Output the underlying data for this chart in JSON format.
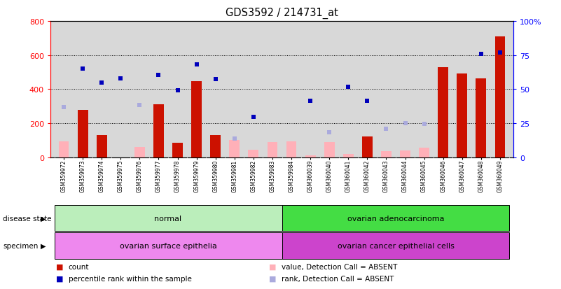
{
  "title": "GDS3592 / 214731_at",
  "samples": [
    "GSM359972",
    "GSM359973",
    "GSM359974",
    "GSM359975",
    "GSM359976",
    "GSM359977",
    "GSM359978",
    "GSM359979",
    "GSM359980",
    "GSM359981",
    "GSM359982",
    "GSM359983",
    "GSM359984",
    "GSM360039",
    "GSM360040",
    "GSM360041",
    "GSM360042",
    "GSM360043",
    "GSM360044",
    "GSM360045",
    "GSM360046",
    "GSM360047",
    "GSM360048",
    "GSM360049"
  ],
  "count_present": [
    0,
    280,
    130,
    0,
    0,
    310,
    85,
    445,
    130,
    0,
    0,
    0,
    0,
    0,
    0,
    0,
    120,
    0,
    0,
    0,
    530,
    490,
    465,
    710
  ],
  "count_absent": [
    95,
    0,
    0,
    0,
    60,
    0,
    0,
    0,
    0,
    100,
    45,
    90,
    95,
    10,
    90,
    20,
    0,
    35,
    40,
    55,
    0,
    0,
    0,
    0
  ],
  "rank_present": [
    0,
    520,
    440,
    465,
    0,
    485,
    395,
    545,
    460,
    0,
    235,
    0,
    0,
    330,
    0,
    415,
    330,
    0,
    0,
    0,
    0,
    0,
    605,
    615
  ],
  "rank_absent": [
    295,
    0,
    0,
    0,
    305,
    0,
    0,
    0,
    0,
    110,
    0,
    0,
    0,
    155,
    145,
    0,
    0,
    165,
    200,
    195,
    0,
    0,
    0,
    0
  ],
  "left_ylim": [
    0,
    800
  ],
  "right_ylim": [
    0,
    100
  ],
  "left_yticks": [
    0,
    200,
    400,
    600,
    800
  ],
  "right_yticks": [
    0,
    25,
    50,
    75,
    100
  ],
  "bar_color_present": "#CC1100",
  "bar_color_absent": "#FFB0B8",
  "dot_color_present": "#0000BB",
  "dot_color_absent": "#AAAADD",
  "grid_color": "#000000",
  "bg_color": "#FFFFFF",
  "axis_bg": "#D8D8D8",
  "disease_groups": [
    {
      "label": "normal",
      "start": 0,
      "end": 12,
      "color": "#BBEEBB"
    },
    {
      "label": "ovarian adenocarcinoma",
      "start": 12,
      "end": 24,
      "color": "#44DD44"
    }
  ],
  "specimen_groups": [
    {
      "label": "ovarian surface epithelia",
      "start": 0,
      "end": 12,
      "color": "#EE88EE"
    },
    {
      "label": "ovarian cancer epithelial cells",
      "start": 12,
      "end": 24,
      "color": "#CC44CC"
    }
  ],
  "legend_items": [
    {
      "label": "count",
      "color": "#CC1100"
    },
    {
      "label": "percentile rank within the sample",
      "color": "#0000BB"
    },
    {
      "label": "value, Detection Call = ABSENT",
      "color": "#FFB0B8"
    },
    {
      "label": "rank, Detection Call = ABSENT",
      "color": "#AAAADD"
    }
  ]
}
